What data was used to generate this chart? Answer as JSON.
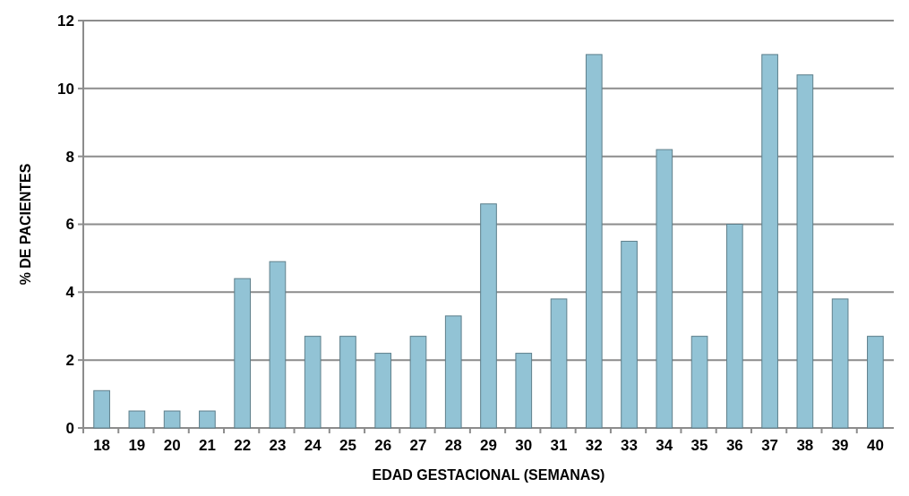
{
  "chart_data": {
    "type": "bar",
    "xlabel": "EDAD GESTACIONAL (SEMANAS)",
    "ylabel": "%  DE PACIENTES",
    "categories": [
      "18",
      "19",
      "20",
      "21",
      "22",
      "23",
      "24",
      "25",
      "26",
      "27",
      "28",
      "29",
      "30",
      "31",
      "32",
      "33",
      "34",
      "35",
      "36",
      "37",
      "38",
      "39",
      "40"
    ],
    "values": [
      1.1,
      0.5,
      0.5,
      0.5,
      4.4,
      4.9,
      2.7,
      2.7,
      2.2,
      2.7,
      3.3,
      6.6,
      2.2,
      3.8,
      11,
      5.5,
      8.2,
      2.7,
      6,
      11,
      10.4,
      3.8,
      2.7
    ],
    "color": "#92c3d5",
    "ylim": [
      0,
      12
    ],
    "yticks": [
      0,
      2,
      4,
      6,
      8,
      10,
      12
    ],
    "grid": "y"
  }
}
